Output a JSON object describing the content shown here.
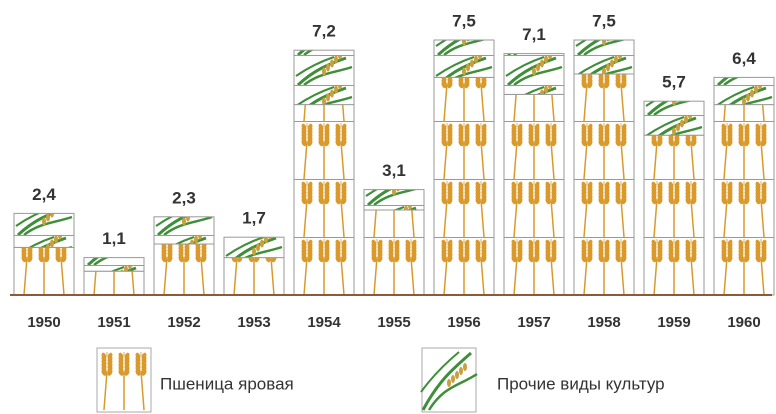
{
  "chart_data": {
    "type": "pictogram-stacked-bar",
    "categories": [
      "1950",
      "1951",
      "1952",
      "1953",
      "1954",
      "1955",
      "1956",
      "1957",
      "1958",
      "1959",
      "1960"
    ],
    "series": [
      {
        "name": "Пшеница яровая",
        "color": "#d99a2b",
        "values": [
          1.4,
          0.7,
          1.5,
          1.1,
          5.6,
          2.5,
          6.4,
          5.9,
          6.5,
          4.7,
          5.6
        ]
      },
      {
        "name": "Прочие виды культур",
        "color": "#3f8f3a",
        "values": [
          1.0,
          0.4,
          0.8,
          0.6,
          1.6,
          0.6,
          1.1,
          1.2,
          1.0,
          1.0,
          0.8
        ]
      }
    ],
    "totals": [
      2.4,
      1.1,
      2.3,
      1.7,
      7.2,
      3.1,
      7.5,
      7.1,
      7.5,
      5.7,
      6.4
    ],
    "value_labels": [
      "2,4",
      "1,1",
      "2,3",
      "1,7",
      "7,2",
      "3,1",
      "7,5",
      "7,1",
      "7,5",
      "5,7",
      "6,4"
    ],
    "ylim": [
      0,
      8.5
    ]
  }
}
